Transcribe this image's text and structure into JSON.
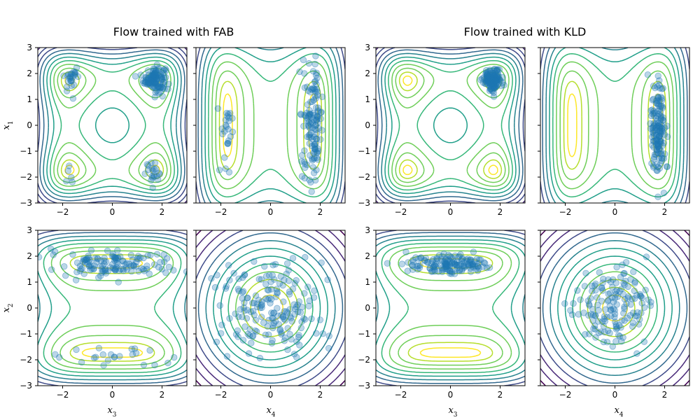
{
  "figure": {
    "titles": [
      "Flow trained with FAB",
      "Flow trained with KLD"
    ],
    "ylabels": [
      "x1",
      "x2"
    ],
    "xlabels": [
      "x3",
      "x4"
    ],
    "point_color": "#1f77b4",
    "viridis": [
      "#440154",
      "#482878",
      "#3e4a89",
      "#31688e",
      "#26828e",
      "#1f9e89",
      "#35b779",
      "#6ece58",
      "#b5de2b",
      "#fde725"
    ]
  },
  "chart_data": [
    {
      "type": "scatter",
      "panel": "FAB x3-x1",
      "xlim": [
        -3,
        3
      ],
      "ylim": [
        -3,
        3
      ],
      "ticks": [
        -3,
        -2,
        -1,
        0,
        1,
        2,
        3
      ],
      "xticklabels": [
        "−2",
        "0",
        "2"
      ],
      "yticklabels": [
        "3",
        "2",
        "1",
        "0",
        "−1",
        "−2",
        "−3"
      ],
      "contour": "quad_well",
      "clusters": [
        {
          "cx": 1.7,
          "cy": 1.8,
          "sx": 0.22,
          "sy": 0.25,
          "n": 120
        },
        {
          "cx": -1.65,
          "cy": 1.8,
          "sx": 0.15,
          "sy": 0.25,
          "n": 25
        },
        {
          "cx": -1.75,
          "cy": -1.9,
          "sx": 0.1,
          "sy": 0.15,
          "n": 5
        },
        {
          "cx": 1.6,
          "cy": -1.85,
          "sx": 0.17,
          "sy": 0.22,
          "n": 20
        }
      ]
    },
    {
      "type": "scatter",
      "panel": "FAB x4-x1",
      "xlim": [
        -3,
        3
      ],
      "ylim": [
        -3,
        3
      ],
      "ticks": [
        -3,
        -2,
        -1,
        0,
        1,
        2,
        3
      ],
      "xticklabels": [
        "−2",
        "0",
        "2"
      ],
      "yticklabels": [],
      "contour": "double_vertical",
      "clusters": [
        {
          "cx": 1.7,
          "cy": 0.1,
          "sx": 0.2,
          "sy": 1.1,
          "n": 130
        },
        {
          "cx": -1.75,
          "cy": -0.3,
          "sx": 0.18,
          "sy": 0.8,
          "n": 25
        }
      ]
    },
    {
      "type": "scatter",
      "panel": "KLD x3-x1",
      "xlim": [
        -3,
        3
      ],
      "ylim": [
        -3,
        3
      ],
      "ticks": [
        -3,
        -2,
        -1,
        0,
        1,
        2,
        3
      ],
      "xticklabels": [
        "−2",
        "0",
        "2"
      ],
      "yticklabels": [
        "3",
        "2",
        "1",
        "0",
        "−1",
        "−2",
        "−3"
      ],
      "contour": "quad_well",
      "clusters": [
        {
          "cx": 1.7,
          "cy": 1.75,
          "sx": 0.18,
          "sy": 0.2,
          "n": 150
        }
      ]
    },
    {
      "type": "scatter",
      "panel": "KLD x4-x1",
      "xlim": [
        -3,
        3
      ],
      "ylim": [
        -3,
        3
      ],
      "ticks": [
        -3,
        -2,
        -1,
        0,
        1,
        2,
        3
      ],
      "xticklabels": [
        "−2",
        "0",
        "2"
      ],
      "yticklabels": [],
      "contour": "double_vertical",
      "clusters": [
        {
          "cx": 1.75,
          "cy": -0.2,
          "sx": 0.15,
          "sy": 1.0,
          "n": 150
        }
      ]
    },
    {
      "type": "scatter",
      "panel": "FAB x3-x2",
      "xlim": [
        -3,
        3
      ],
      "ylim": [
        -3,
        3
      ],
      "ticks": [
        -3,
        -2,
        -1,
        0,
        1,
        2,
        3
      ],
      "xticklabels": [
        "−2",
        "0",
        "2"
      ],
      "yticklabels": [
        "3",
        "2",
        "1",
        "0",
        "−1",
        "−2",
        "−3"
      ],
      "contour": "double_horizontal",
      "clusters": [
        {
          "cx": 0,
          "cy": 1.7,
          "sx": 1.1,
          "sy": 0.25,
          "n": 130
        },
        {
          "cx": 0,
          "cy": -1.85,
          "sx": 1.2,
          "sy": 0.2,
          "n": 25
        }
      ]
    },
    {
      "type": "scatter",
      "panel": "FAB x4-x2",
      "xlim": [
        -3,
        3
      ],
      "ylim": [
        -3,
        3
      ],
      "ticks": [
        -3,
        -2,
        -1,
        0,
        1,
        2,
        3
      ],
      "xticklabels": [
        "−2",
        "0",
        "2"
      ],
      "yticklabels": [],
      "contour": "rings",
      "clusters": [
        {
          "cx": 0,
          "cy": 0,
          "sx": 1.0,
          "sy": 1.0,
          "n": 180
        }
      ]
    },
    {
      "type": "scatter",
      "panel": "KLD x3-x2",
      "xlim": [
        -3,
        3
      ],
      "ylim": [
        -3,
        3
      ],
      "ticks": [
        -3,
        -2,
        -1,
        0,
        1,
        2,
        3
      ],
      "xticklabels": [
        "−2",
        "0",
        "2"
      ],
      "yticklabels": [
        "3",
        "2",
        "1",
        "0",
        "−1",
        "−2",
        "−3"
      ],
      "contour": "double_horizontal",
      "clusters": [
        {
          "cx": 0,
          "cy": 1.7,
          "sx": 0.9,
          "sy": 0.2,
          "n": 150
        }
      ]
    },
    {
      "type": "scatter",
      "panel": "KLD x4-x2",
      "xlim": [
        -3,
        3
      ],
      "ylim": [
        -3,
        3
      ],
      "ticks": [
        -3,
        -2,
        -1,
        0,
        1,
        2,
        3
      ],
      "xticklabels": [
        "−2",
        "0",
        "2"
      ],
      "yticklabels": [],
      "contour": "rings",
      "clusters": [
        {
          "cx": 0,
          "cy": 0,
          "sx": 0.8,
          "sy": 0.8,
          "n": 150
        }
      ]
    }
  ]
}
